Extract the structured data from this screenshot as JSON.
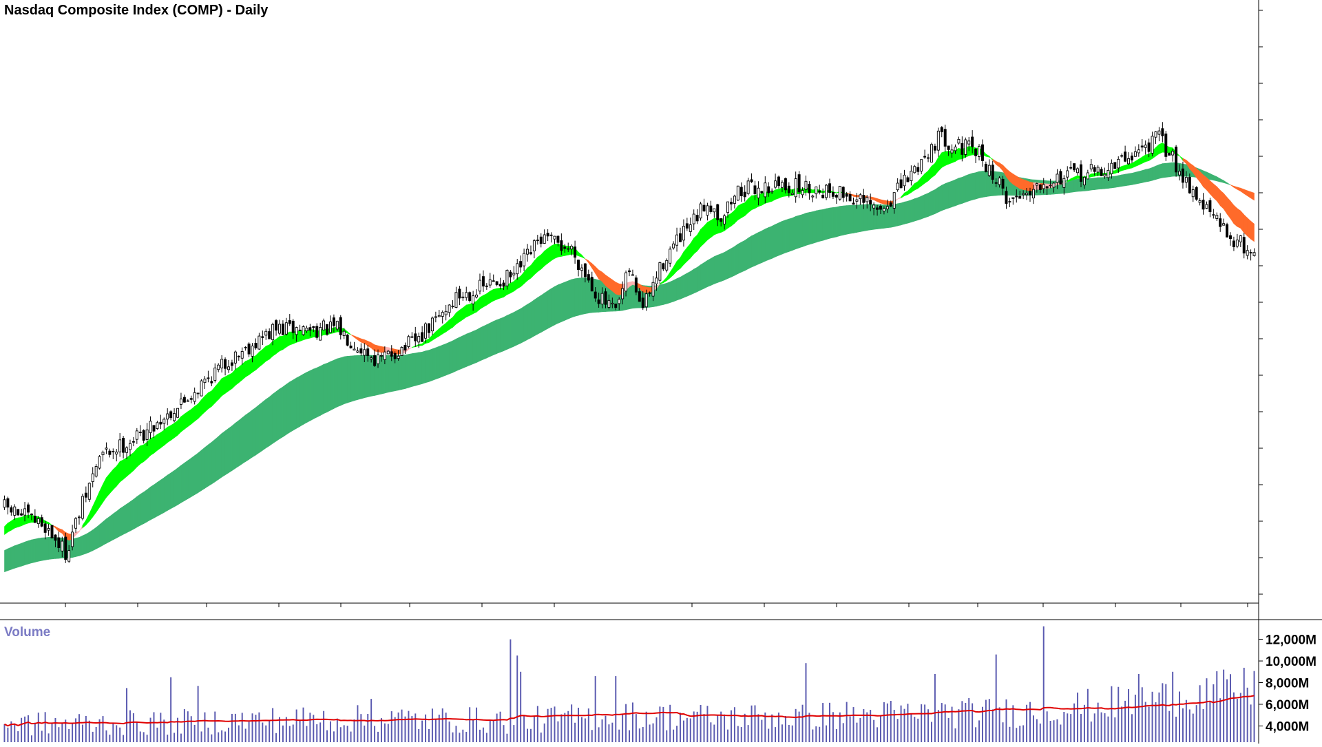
{
  "title": "Nasdaq Composite Index (COMP) - Daily",
  "volume_label": "Volume",
  "colors": {
    "ema_short_bull": "#00ff00",
    "ema_short_bear": "#ff6a2a",
    "ema_short_weak": "#ffb3b3",
    "ema_long_band": "#3cb371",
    "ema_long_bear": "#ff6a2a",
    "candle": "#000000",
    "volume_bar": "#5a5ab0",
    "volume_ma": "#e00000"
  },
  "chart_data": [
    {
      "type": "candlestick",
      "title": "Nasdaq Composite Index (COMP) - Daily",
      "price_axis_labels": "not printed",
      "grid": false,
      "legend": "none",
      "trend_path": [
        [
          0,
          12.5
        ],
        [
          12,
          9
        ],
        [
          18,
          4
        ],
        [
          28,
          22
        ],
        [
          40,
          26
        ],
        [
          52,
          32
        ],
        [
          62,
          38
        ],
        [
          70,
          42
        ],
        [
          80,
          46
        ],
        [
          98,
          46
        ],
        [
          110,
          40
        ],
        [
          122,
          44
        ],
        [
          133,
          52
        ],
        [
          150,
          56
        ],
        [
          158,
          63
        ],
        [
          167,
          61
        ],
        [
          175,
          52
        ],
        [
          180,
          49
        ],
        [
          184,
          57
        ],
        [
          188,
          50
        ],
        [
          195,
          60
        ],
        [
          203,
          66
        ],
        [
          207,
          70
        ],
        [
          211,
          67
        ],
        [
          216,
          72
        ],
        [
          228,
          73
        ],
        [
          245,
          72
        ],
        [
          258,
          68
        ],
        [
          268,
          76
        ],
        [
          275,
          82
        ],
        [
          287,
          79
        ],
        [
          296,
          70
        ],
        [
          306,
          74
        ],
        [
          316,
          75
        ],
        [
          325,
          76
        ],
        [
          340,
          82
        ],
        [
          348,
          74
        ],
        [
          352,
          70
        ],
        [
          360,
          64
        ],
        [
          368,
          60
        ]
      ]
    },
    {
      "type": "bar",
      "name": "Volume",
      "y_tick_labels": [
        "12,000M",
        "10,000M",
        "8,000M",
        "6,000M",
        "4,000M"
      ],
      "y_ticks": [
        12000,
        10000,
        8000,
        6000,
        4000
      ],
      "unit": "M shares",
      "ylim": [
        2500,
        13500
      ],
      "volume_profile": [
        [
          0,
          4.2
        ],
        [
          40,
          4.3
        ],
        [
          80,
          4.6
        ],
        [
          110,
          4.7
        ],
        [
          150,
          4.5
        ],
        [
          180,
          5.0
        ],
        [
          210,
          4.8
        ],
        [
          260,
          5.1
        ],
        [
          300,
          5.3
        ],
        [
          330,
          6.2
        ],
        [
          350,
          6.9
        ],
        [
          368,
          7.6
        ]
      ],
      "spikes": [
        [
          36,
          7.5
        ],
        [
          49,
          8.5
        ],
        [
          57,
          7.7
        ],
        [
          108,
          6.5
        ],
        [
          149,
          12.0
        ],
        [
          151,
          10.5
        ],
        [
          152,
          9.0
        ],
        [
          174,
          8.6
        ],
        [
          180,
          8.6
        ],
        [
          236,
          9.8
        ],
        [
          274,
          8.8
        ],
        [
          292,
          10.6
        ],
        [
          306,
          13.2
        ],
        [
          334,
          8.8
        ],
        [
          344,
          9.0
        ]
      ]
    }
  ]
}
